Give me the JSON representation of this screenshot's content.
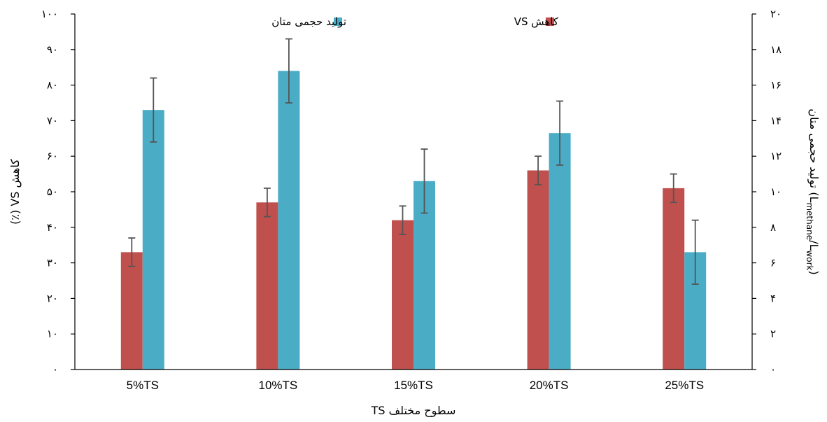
{
  "chart_data": {
    "type": "bar",
    "categories": [
      "5%TS",
      "10%TS",
      "15%TS",
      "20%TS",
      "25%TS"
    ],
    "xlabel": "سطوح مختلف TS",
    "ylabel": "کاهش VS (٪)",
    "y2label": "تولید حجمی متان (L",
    "y2label_sub1": "methane",
    "y2label_mid": "/L",
    "y2label_sub2": "work",
    "y2label_end": ")",
    "ylim": [
      0,
      100
    ],
    "y2lim": [
      0,
      20
    ],
    "yticks": [
      "۰",
      "۱۰",
      "۲۰",
      "۳۰",
      "۴۰",
      "۵۰",
      "۶۰",
      "۷۰",
      "۸۰",
      "۹۰",
      "۱۰۰"
    ],
    "y2ticks": [
      "۰",
      "۲",
      "۴",
      "۶",
      "۸",
      "۱۰",
      "۱۲",
      "۱۴",
      "۱۶",
      "۱۸",
      "۲۰"
    ],
    "legend_position": "top",
    "series": [
      {
        "name": "کاهش VS",
        "axis": "left",
        "color": "#C0504D",
        "values": [
          33,
          47,
          42,
          56,
          51
        ],
        "errors": [
          4,
          4,
          4,
          4,
          4
        ]
      },
      {
        "name": "تولید حجمی متان",
        "axis": "right",
        "color": "#4BACC6",
        "values": [
          14.6,
          16.8,
          10.6,
          13.3,
          6.6
        ],
        "errors": [
          1.8,
          1.8,
          1.8,
          1.8,
          1.8
        ]
      }
    ]
  }
}
